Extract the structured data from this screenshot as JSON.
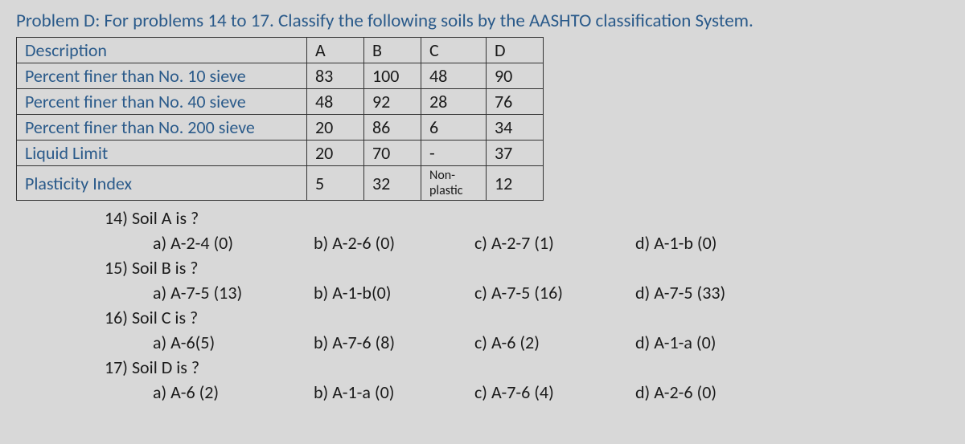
{
  "title": "Problem D: For problems 14 to 17. Classify the following soils by the AASHTO classification System.",
  "table": {
    "header": {
      "desc": "Description",
      "a": "A",
      "b": "B",
      "c": "C",
      "d": "D"
    },
    "rows": [
      {
        "desc": "Percent finer than No. 10 sieve",
        "a": "83",
        "b": "100",
        "c": "48",
        "d": "90"
      },
      {
        "desc": "Percent finer than No. 40 sieve",
        "a": "48",
        "b": "92",
        "c": "28",
        "d": "76"
      },
      {
        "desc": "Percent finer than No. 200 sieve",
        "a": "20",
        "b": "86",
        "c": "6",
        "d": "34"
      },
      {
        "desc": "Liquid Limit",
        "a": "20",
        "b": "70",
        "c": "-",
        "d": "37"
      },
      {
        "desc": "Plasticity Index",
        "a": "5",
        "b": "32",
        "c": "Non-plastic",
        "d": "12"
      }
    ]
  },
  "questions": [
    {
      "q": "14) Soil A is ?",
      "opts": {
        "a": "a) A-2-4 (0)",
        "b": "b) A-2-6 (0)",
        "c": "c) A-2-7 (1)",
        "d": "d) A-1-b (0)"
      }
    },
    {
      "q": "15) Soil B is ?",
      "opts": {
        "a": "a) A-7-5 (13)",
        "b": "b) A-1-b(0)",
        "c": "c) A-7-5 (16)",
        "d": "d) A-7-5 (33)"
      }
    },
    {
      "q": "16) Soil C is ?",
      "opts": {
        "a": "a) A-6(5)",
        "b": "b) A-7-6 (8)",
        "c": "c) A-6 (2)",
        "d": "d) A-1-a (0)"
      }
    },
    {
      "q": "17) Soil D is ?",
      "opts": {
        "a": "a) A-6 (2)",
        "b": "b) A-1-a (0)",
        "c": "c) A-7-6 (4)",
        "d": "d) A-2-6 (0)"
      }
    }
  ],
  "colors": {
    "text_blue": "#2a5a8a",
    "text_black": "#1a1a1a",
    "background": "#d8d8d8",
    "border": "#333333"
  },
  "fontsize_main": 22,
  "fontsize_small": 16
}
